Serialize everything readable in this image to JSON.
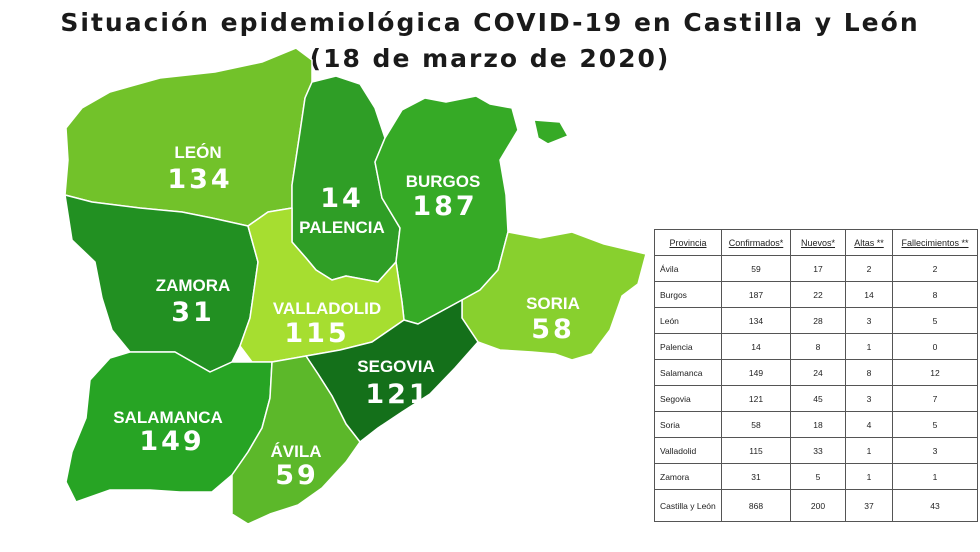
{
  "title": {
    "line1": "Situación epidemiológica COVID-19 en Castilla y León",
    "line2": "(18 de marzo de 2020)"
  },
  "map": {
    "provinces": [
      {
        "name": "LEÓN",
        "cases": "134",
        "color": "#72c22a"
      },
      {
        "name": "PALENCIA",
        "cases": "14",
        "color": "#2f9e26"
      },
      {
        "name": "BURGOS",
        "cases": "187",
        "color": "#36aa26"
      },
      {
        "name": "ZAMORA",
        "cases": "31",
        "color": "#229022"
      },
      {
        "name": "VALLADOLID",
        "cases": "115",
        "color": "#a6de30"
      },
      {
        "name": "SORIA",
        "cases": "58",
        "color": "#88d02e"
      },
      {
        "name": "SEGOVIA",
        "cases": "121",
        "color": "#14701a"
      },
      {
        "name": "SALAMANCA",
        "cases": "149",
        "color": "#27a424"
      },
      {
        "name": "ÁVILA",
        "cases": "59",
        "color": "#5cb82a"
      }
    ]
  },
  "table": {
    "headers": [
      "Provincia",
      "Confirmados*",
      "Nuevos*",
      "Altas **",
      "Fallecimientos **"
    ],
    "rows": [
      [
        "Ávila",
        "59",
        "17",
        "2",
        "2"
      ],
      [
        "Burgos",
        "187",
        "22",
        "14",
        "8"
      ],
      [
        "León",
        "134",
        "28",
        "3",
        "5"
      ],
      [
        "Palencia",
        "14",
        "8",
        "1",
        "0"
      ],
      [
        "Salamanca",
        "149",
        "24",
        "8",
        "12"
      ],
      [
        "Segovia",
        "121",
        "45",
        "3",
        "7"
      ],
      [
        "Soria",
        "58",
        "18",
        "4",
        "5"
      ],
      [
        "Valladolid",
        "115",
        "33",
        "1",
        "3"
      ],
      [
        "Zamora",
        "31",
        "5",
        "1",
        "1"
      ],
      [
        "Castilla y León",
        "868",
        "200",
        "37",
        "43"
      ]
    ]
  }
}
